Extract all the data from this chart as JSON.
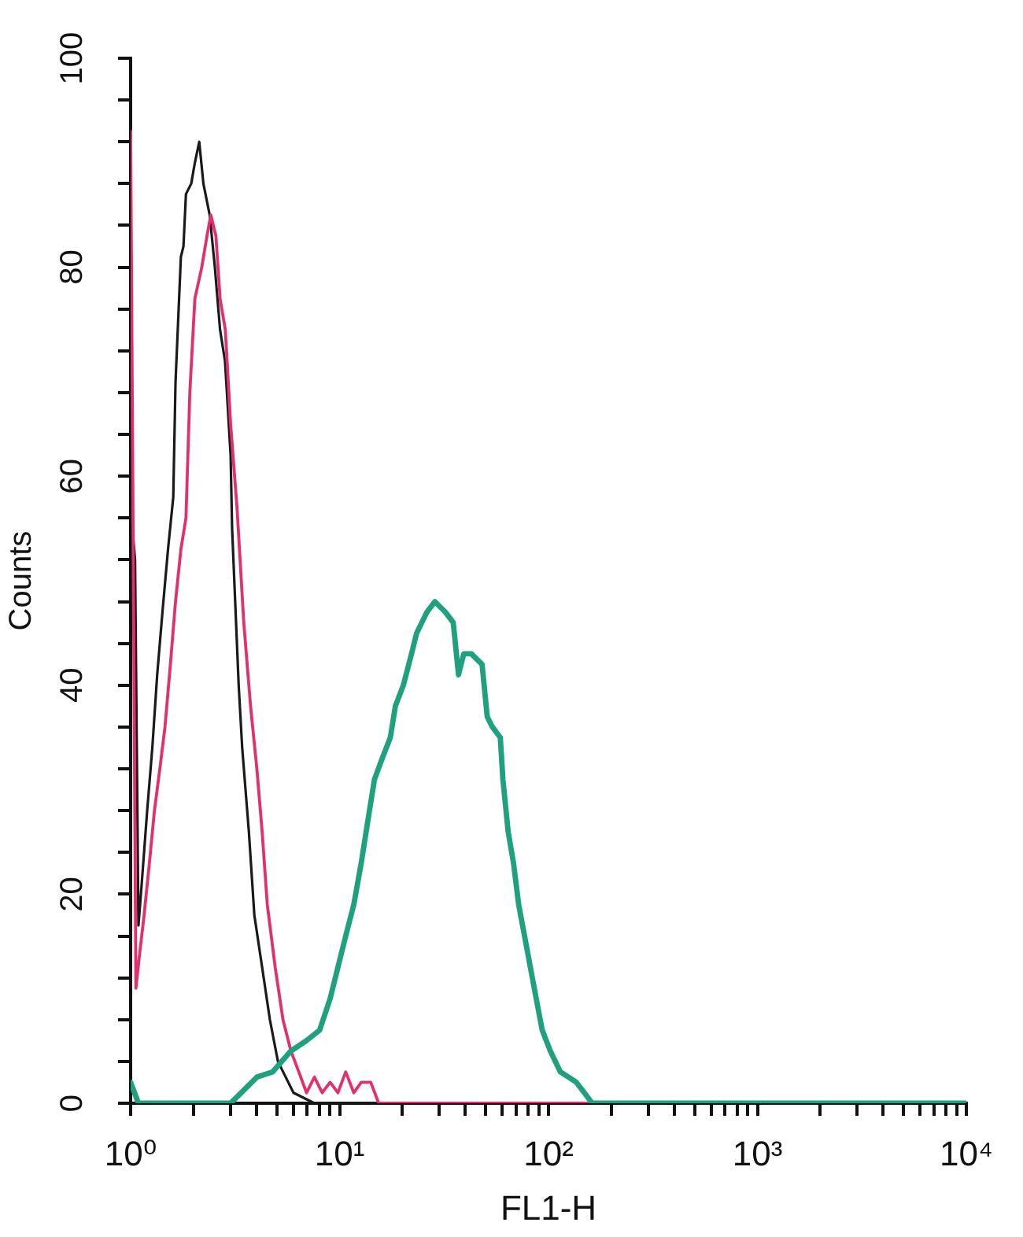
{
  "chart_data": {
    "type": "line",
    "xlabel": "FL1-H",
    "ylabel": "Counts",
    "log": "x",
    "grid": false,
    "legend": false,
    "marker": "none",
    "line_style": "solid",
    "xlim": [
      1,
      10000
    ],
    "ylim": [
      0,
      100
    ],
    "xticks": [
      {
        "value": 1,
        "label": "10⁰"
      },
      {
        "value": 2,
        "label": null
      },
      {
        "value": 3,
        "label": null
      },
      {
        "value": 4,
        "label": null
      },
      {
        "value": 5,
        "label": null
      },
      {
        "value": 6,
        "label": null
      },
      {
        "value": 7,
        "label": null
      },
      {
        "value": 8,
        "label": null
      },
      {
        "value": 9,
        "label": null
      },
      {
        "value": 10,
        "label": "10¹"
      },
      {
        "value": 20,
        "label": null
      },
      {
        "value": 30,
        "label": null
      },
      {
        "value": 40,
        "label": null
      },
      {
        "value": 50,
        "label": null
      },
      {
        "value": 60,
        "label": null
      },
      {
        "value": 70,
        "label": null
      },
      {
        "value": 80,
        "label": null
      },
      {
        "value": 90,
        "label": null
      },
      {
        "value": 100,
        "label": "10²"
      },
      {
        "value": 200,
        "label": null
      },
      {
        "value": 300,
        "label": null
      },
      {
        "value": 400,
        "label": null
      },
      {
        "value": 500,
        "label": null
      },
      {
        "value": 600,
        "label": null
      },
      {
        "value": 700,
        "label": null
      },
      {
        "value": 800,
        "label": null
      },
      {
        "value": 900,
        "label": null
      },
      {
        "value": 1000,
        "label": "10³"
      },
      {
        "value": 2000,
        "label": null
      },
      {
        "value": 3000,
        "label": null
      },
      {
        "value": 4000,
        "label": null
      },
      {
        "value": 5000,
        "label": null
      },
      {
        "value": 6000,
        "label": null
      },
      {
        "value": 7000,
        "label": null
      },
      {
        "value": 8000,
        "label": null
      },
      {
        "value": 9000,
        "label": null
      },
      {
        "value": 10000,
        "label": "10⁴"
      }
    ],
    "yticks": [
      0,
      {
        "value": 4,
        "label": null
      },
      {
        "value": 8,
        "label": null
      },
      {
        "value": 12,
        "label": null
      },
      {
        "value": 16,
        "label": null
      },
      20,
      {
        "value": 24,
        "label": null
      },
      {
        "value": 28,
        "label": null
      },
      {
        "value": 32,
        "label": null
      },
      {
        "value": 36,
        "label": null
      },
      40,
      {
        "value": 44,
        "label": null
      },
      {
        "value": 48,
        "label": null
      },
      {
        "value": 52,
        "label": null
      },
      {
        "value": 56,
        "label": null
      },
      60,
      {
        "value": 64,
        "label": null
      },
      {
        "value": 68,
        "label": null
      },
      {
        "value": 72,
        "label": null
      },
      {
        "value": 76,
        "label": null
      },
      80,
      {
        "value": 84,
        "label": null
      },
      {
        "value": 88,
        "label": null
      },
      {
        "value": 92,
        "label": null
      },
      {
        "value": 96,
        "label": null
      },
      100
    ],
    "series": [
      {
        "color": "#1a1a1a",
        "x": [
          1,
          1.05,
          1.09,
          1.13,
          1.2,
          1.27,
          1.34,
          1.42,
          1.51,
          1.6,
          1.64,
          1.74,
          1.79,
          1.84,
          1.95,
          2.03,
          2.13,
          2.23,
          2.39,
          2.53,
          2.68,
          2.83,
          3.01,
          3.06,
          3.29,
          3.42,
          3.68,
          3.91,
          4.26,
          4.64,
          5.07,
          6.02,
          7.58,
          10000
        ],
        "values": [
          57,
          52,
          17,
          21,
          28,
          34,
          41,
          47,
          53,
          58,
          69,
          81,
          82,
          87,
          88,
          90,
          92,
          88,
          85,
          80,
          74,
          71,
          62,
          55,
          40,
          34,
          26,
          18,
          13,
          8,
          4,
          1,
          0,
          0
        ]
      },
      {
        "color": "#e2306c",
        "x": [
          1,
          1.06,
          1.1,
          1.16,
          1.23,
          1.3,
          1.38,
          1.46,
          1.55,
          1.64,
          1.74,
          1.84,
          1.92,
          2.03,
          2.19,
          2.32,
          2.42,
          2.56,
          2.68,
          2.84,
          3.01,
          3.23,
          3.48,
          3.75,
          4.02,
          4.26,
          4.51,
          4.92,
          5.36,
          5.85,
          6.38,
          6.95,
          7.58,
          8.26,
          9.01,
          9.82,
          10.7,
          11.7,
          12.7,
          14.1,
          15.4,
          10000
        ],
        "values": [
          93,
          11,
          14,
          18,
          23,
          28,
          32,
          36,
          42,
          48,
          53,
          56,
          68,
          77,
          80,
          83,
          85,
          83,
          77,
          74,
          65,
          57,
          46,
          38,
          32,
          26,
          19,
          13,
          8,
          5,
          3,
          1,
          2.5,
          1,
          2,
          1,
          3,
          1,
          2,
          2,
          0,
          0
        ]
      },
      {
        "color": "#1fa07e",
        "x": [
          1,
          1.09,
          3.01,
          3.38,
          4.02,
          4.78,
          5.85,
          6.95,
          8.03,
          9.01,
          9.82,
          10.7,
          11.7,
          12.7,
          13.9,
          14.7,
          16,
          17.5,
          18.5,
          20.2,
          22.1,
          23.4,
          26.2,
          28.6,
          32.1,
          35,
          37.1,
          39.3,
          42.8,
          48.1,
          50.9,
          53.9,
          58.8,
          60.5,
          64.1,
          68,
          72,
          78.5,
          85.5,
          93.3,
          102,
          114,
          136,
          162,
          10000
        ],
        "values": [
          2,
          0,
          0,
          1,
          2.5,
          3,
          5,
          6,
          7,
          10,
          13,
          16,
          19,
          23,
          28,
          31,
          33,
          35,
          38,
          40,
          43,
          45,
          47,
          48,
          47,
          46,
          41,
          43,
          43,
          42,
          37,
          36,
          35,
          31,
          26,
          23,
          19,
          15,
          11,
          7,
          5,
          3,
          2,
          0,
          0
        ]
      }
    ]
  }
}
